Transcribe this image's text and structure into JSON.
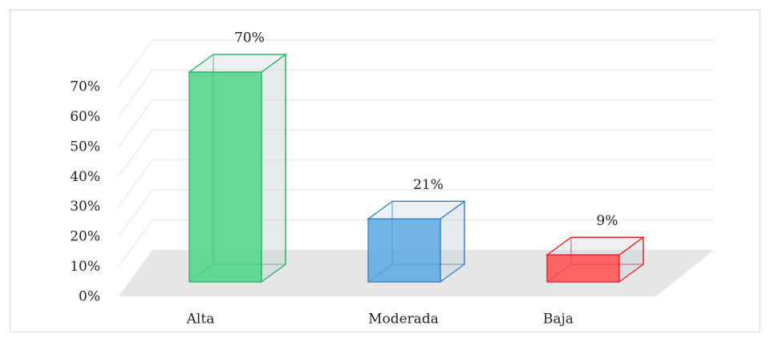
{
  "chart_data": {
    "type": "bar3d",
    "categories": [
      "Alta",
      "Moderada",
      "Baja"
    ],
    "values": [
      70,
      21,
      9
    ],
    "value_labels": [
      "70%",
      "21%",
      "9%"
    ],
    "colors": [
      "#4cd387",
      "#5aa7e2",
      "#ff4d4d"
    ],
    "edge_colors": [
      "#27b35f",
      "#2f80c8",
      "#e8202a"
    ],
    "ylim": [
      0,
      70
    ],
    "yticks": [
      {
        "value": 0,
        "label": "0%"
      },
      {
        "value": 10,
        "label": "10%"
      },
      {
        "value": 20,
        "label": "20%"
      },
      {
        "value": 30,
        "label": "30%"
      },
      {
        "value": 40,
        "label": "40%"
      },
      {
        "value": 50,
        "label": "50%"
      },
      {
        "value": 60,
        "label": "60%"
      },
      {
        "value": 70,
        "label": "70%"
      }
    ],
    "grid": true
  }
}
